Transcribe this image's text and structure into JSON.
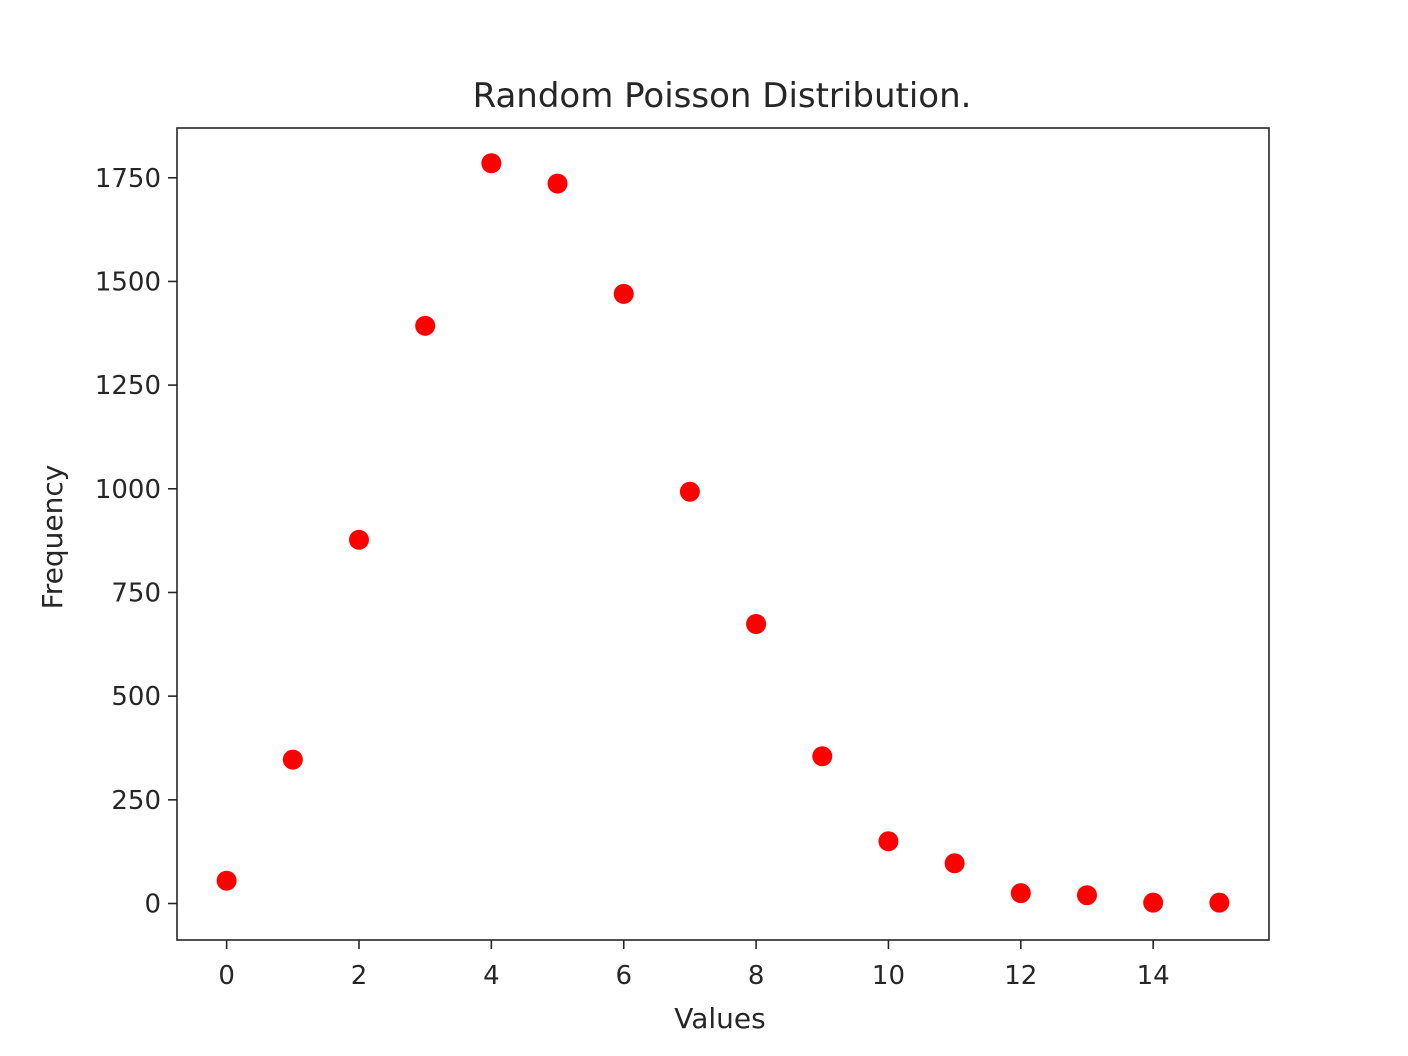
{
  "chart_data": {
    "type": "scatter",
    "title": "Random Poisson Distribution.",
    "xlabel": "Values",
    "ylabel": "Frequency",
    "xlim": [
      -0.75,
      15.75
    ],
    "ylim": [
      -88,
      1870
    ],
    "xticks": [
      0,
      2,
      4,
      6,
      8,
      10,
      12,
      14
    ],
    "yticks": [
      0,
      250,
      500,
      750,
      1000,
      1250,
      1500,
      1750
    ],
    "grid": false,
    "marker_color": "#ff0000",
    "x": [
      0,
      1,
      2,
      3,
      4,
      5,
      6,
      7,
      8,
      9,
      10,
      11,
      12,
      13,
      14,
      15
    ],
    "y": [
      55,
      347,
      877,
      1393,
      1785,
      1736,
      1470,
      993,
      674,
      355,
      150,
      97,
      25,
      20,
      2,
      2
    ]
  }
}
